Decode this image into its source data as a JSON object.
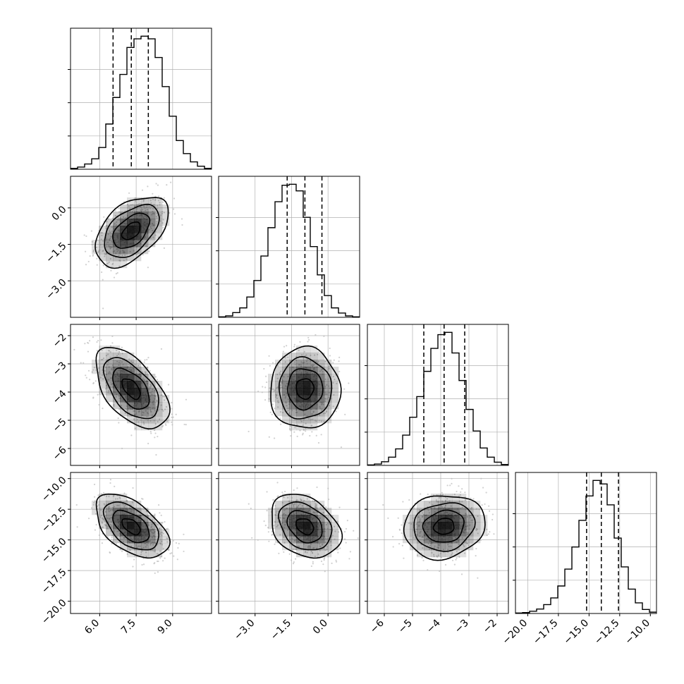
{
  "chart_data": {
    "type": "corner",
    "parameters": [
      {
        "range": [
          4.8,
          10.6
        ],
        "ticks": [
          6.0,
          7.5,
          9.0
        ],
        "tick_labels": [
          "6.0",
          "7.5",
          "9.0"
        ],
        "quantiles": [
          6.55,
          7.3,
          8.0
        ],
        "histogram": {
          "edges_start": 4.8,
          "bin_width": 0.29,
          "counts": [
            2,
            5,
            12,
            24,
            50,
            104,
            165,
            218,
            280,
            300,
            306,
            300,
            257,
            190,
            122,
            66,
            36,
            17,
            7,
            2
          ]
        }
      },
      {
        "range": [
          -4.5,
          1.3
        ],
        "ticks": [
          -3.0,
          -1.5,
          0.0
        ],
        "tick_labels": [
          "−3.0",
          "−1.5",
          "0.0"
        ],
        "quantiles": [
          -1.68,
          -0.95,
          -0.25
        ],
        "histogram": {
          "edges_start": -4.5,
          "bin_width": 0.29,
          "counts": [
            1,
            3,
            10,
            20,
            43,
            78,
            130,
            190,
            245,
            280,
            282,
            268,
            212,
            150,
            90,
            46,
            20,
            9,
            3,
            1
          ]
        }
      },
      {
        "range": [
          -6.6,
          -1.6
        ],
        "ticks": [
          -6,
          -5,
          -4,
          -3,
          -2
        ],
        "tick_labels": [
          "−6",
          "−5",
          "−4",
          "−3",
          "−2"
        ],
        "quantiles": [
          -4.6,
          -3.88,
          -3.15
        ],
        "histogram": {
          "edges_start": -6.6,
          "bin_width": 0.25,
          "counts": [
            1,
            3,
            8,
            18,
            36,
            66,
            105,
            150,
            205,
            255,
            285,
            290,
            245,
            185,
            122,
            75,
            38,
            18,
            7,
            2
          ]
        }
      },
      {
        "range": [
          -21.0,
          -9.5
        ],
        "ticks": [
          -20.0,
          -17.5,
          -15.0,
          -12.5,
          -10.0
        ],
        "tick_labels": [
          "−20.0",
          "−17.5",
          "−15.0",
          "−12.5",
          "−10.0"
        ],
        "quantiles": [
          -15.2,
          -14.0,
          -12.6
        ],
        "histogram": {
          "edges_start": -21.0,
          "bin_width": 0.575,
          "counts": [
            1,
            2,
            5,
            10,
            20,
            35,
            62,
            100,
            150,
            210,
            265,
            300,
            292,
            245,
            170,
            105,
            55,
            24,
            9,
            3
          ]
        }
      }
    ],
    "cross": [
      {
        "row": 1,
        "col": 0,
        "center": [
          7.3,
          -0.95
        ],
        "spread": [
          0.75,
          0.72
        ],
        "rho": 0.48
      },
      {
        "row": 2,
        "col": 0,
        "center": [
          7.3,
          -3.88
        ],
        "spread": [
          0.75,
          0.72
        ],
        "rho": -0.55
      },
      {
        "row": 2,
        "col": 1,
        "center": [
          -0.95,
          -3.88
        ],
        "spread": [
          0.72,
          0.72
        ],
        "rho": 0.0
      },
      {
        "row": 3,
        "col": 0,
        "center": [
          7.3,
          -13.9
        ],
        "spread": [
          0.75,
          1.3
        ],
        "rho": -0.52
      },
      {
        "row": 3,
        "col": 1,
        "center": [
          -0.95,
          -13.9
        ],
        "spread": [
          0.72,
          1.3
        ],
        "rho": -0.3
      },
      {
        "row": 3,
        "col": 2,
        "center": [
          -3.88,
          -13.9
        ],
        "spread": [
          0.72,
          1.3
        ],
        "rho": 0.1
      }
    ],
    "contour_levels_sigma": [
      0.5,
      1.0,
      1.5,
      2.0
    ],
    "scatter_points_per_panel": 500,
    "grid": true,
    "colors": {
      "line": "#000000",
      "grid": "#b0b0b0",
      "scatter": "#bdbdbd",
      "density": "#000000"
    }
  }
}
